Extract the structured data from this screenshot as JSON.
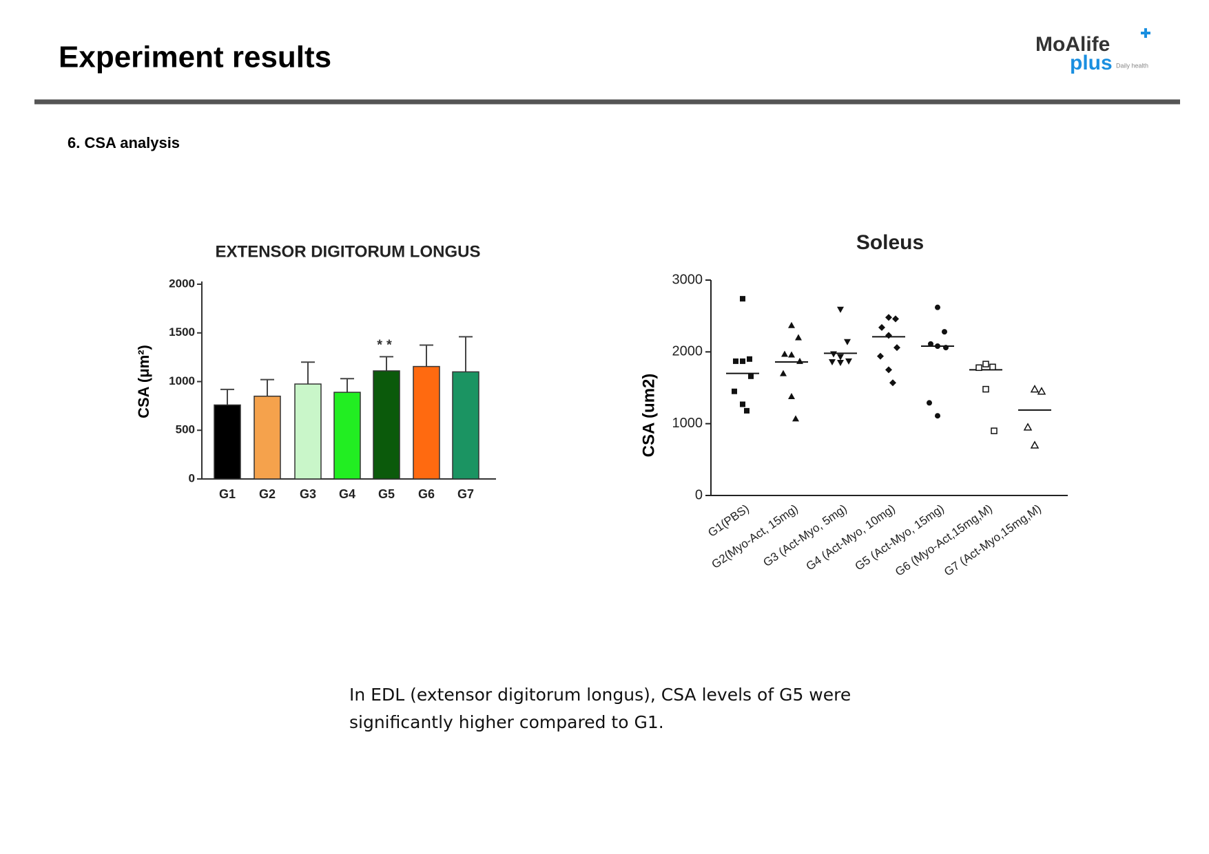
{
  "header": {
    "title": "Experiment results",
    "logo": {
      "main": "MoAlife",
      "sub": "plus",
      "tagline": "Daily health"
    }
  },
  "section": "6. CSA analysis",
  "chart_data": [
    {
      "type": "bar",
      "title": "EXTENSOR DIGITORUM LONGUS",
      "y_label": "CSA (μm²)",
      "categories": [
        "G1",
        "G2",
        "G3",
        "G4",
        "G5",
        "G6",
        "G7"
      ],
      "values": [
        760,
        850,
        975,
        890,
        1110,
        1155,
        1100
      ],
      "errors": [
        160,
        170,
        225,
        140,
        145,
        220,
        360
      ],
      "colors": [
        "#000000",
        "#f5a24c",
        "#c9f6c9",
        "#22ee22",
        "#0b5a0b",
        "#ff6a10",
        "#1b9462"
      ],
      "ylim": [
        0,
        2000
      ],
      "yticks": [
        0,
        500,
        1000,
        1500,
        2000
      ],
      "annotations": [
        {
          "text": "**",
          "category": "G5"
        }
      ]
    },
    {
      "type": "scatter",
      "title": "Soleus",
      "y_label": "CSA (um2)",
      "categories": [
        "G1(PBS)",
        "G2(Myo-Act, 15mg)",
        "G3 (Act-Myo, 5mg)",
        "G4 (Act-Myo, 10mg)",
        "G5 (Act-Myo, 15mg)",
        "G6 (Myo-Act,15mg,M)",
        "G7 (Act-Myo,15mg,M)"
      ],
      "points": [
        [
          2740,
          1900,
          1870,
          1870,
          1660,
          1450,
          1270,
          1180
        ],
        [
          2370,
          2200,
          1970,
          1960,
          1870,
          1700,
          1380,
          1070
        ],
        [
          2590,
          2140,
          1970,
          1930,
          1870,
          1860,
          1850
        ],
        [
          2480,
          2460,
          2340,
          2230,
          2060,
          1940,
          1750,
          1570
        ],
        [
          2620,
          2280,
          2110,
          2080,
          2060,
          1290,
          1110
        ],
        [
          1830,
          1790,
          1780,
          1480,
          900
        ],
        [
          1480,
          1450,
          950,
          700
        ]
      ],
      "means": [
        1700,
        1860,
        1980,
        2210,
        2080,
        1750,
        1190
      ],
      "markers": [
        "square",
        "triangle",
        "triangle-down",
        "diamond",
        "circle",
        "square-open",
        "triangle-open"
      ],
      "ylim": [
        0,
        3000
      ],
      "yticks": [
        0,
        1000,
        2000,
        3000
      ]
    }
  ],
  "caption": "In EDL (extensor digitorum longus), CSA levels of G5 were significantly higher compared to G1."
}
